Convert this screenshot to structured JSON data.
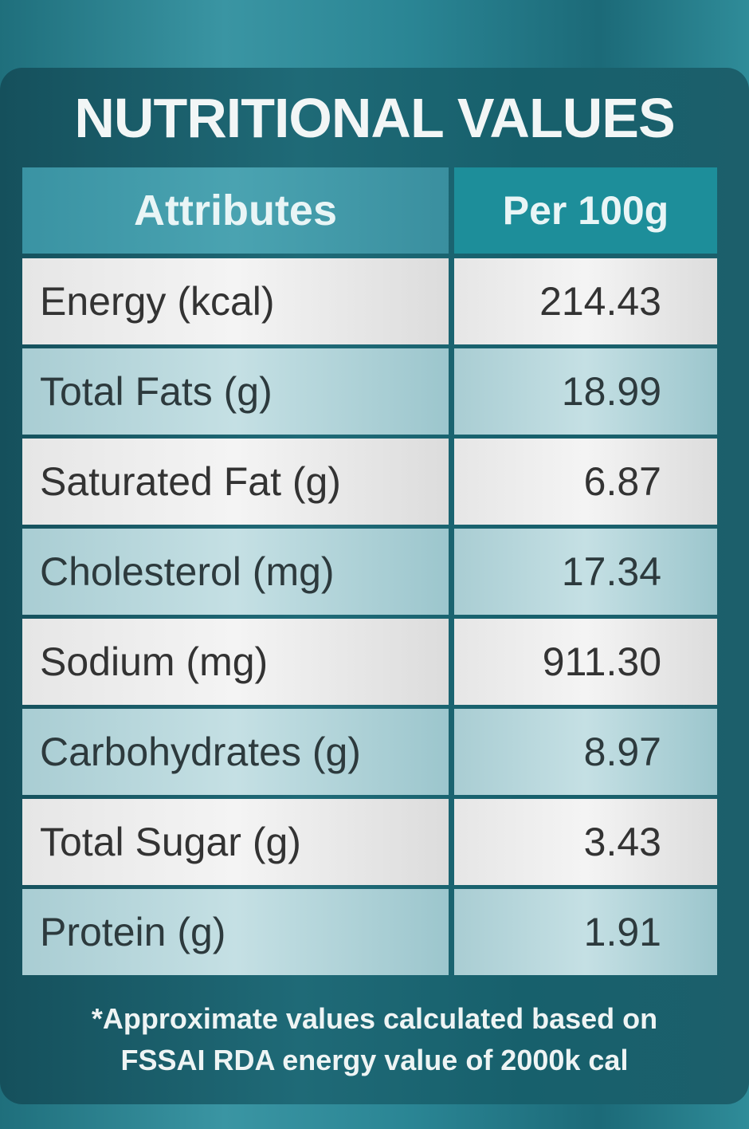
{
  "title": "NUTRITIONAL VALUES",
  "table": {
    "header": [
      "Attributes",
      "Per 100g"
    ],
    "rows": [
      [
        "Energy (kcal)",
        "214.43"
      ],
      [
        "Total Fats (g)",
        "18.99"
      ],
      [
        "Saturated Fat (g)",
        "6.87"
      ],
      [
        "Cholesterol (mg)",
        "17.34"
      ],
      [
        "Sodium (mg)",
        "911.30"
      ],
      [
        "Carbohydrates (g)",
        "8.97"
      ],
      [
        "Total Sugar (g)",
        "3.43"
      ],
      [
        "Protein (g)",
        "1.91"
      ]
    ]
  },
  "footnote": [
    "*Approximate values calculated based on",
    "FSSAI RDA energy value of 2000k cal"
  ]
}
